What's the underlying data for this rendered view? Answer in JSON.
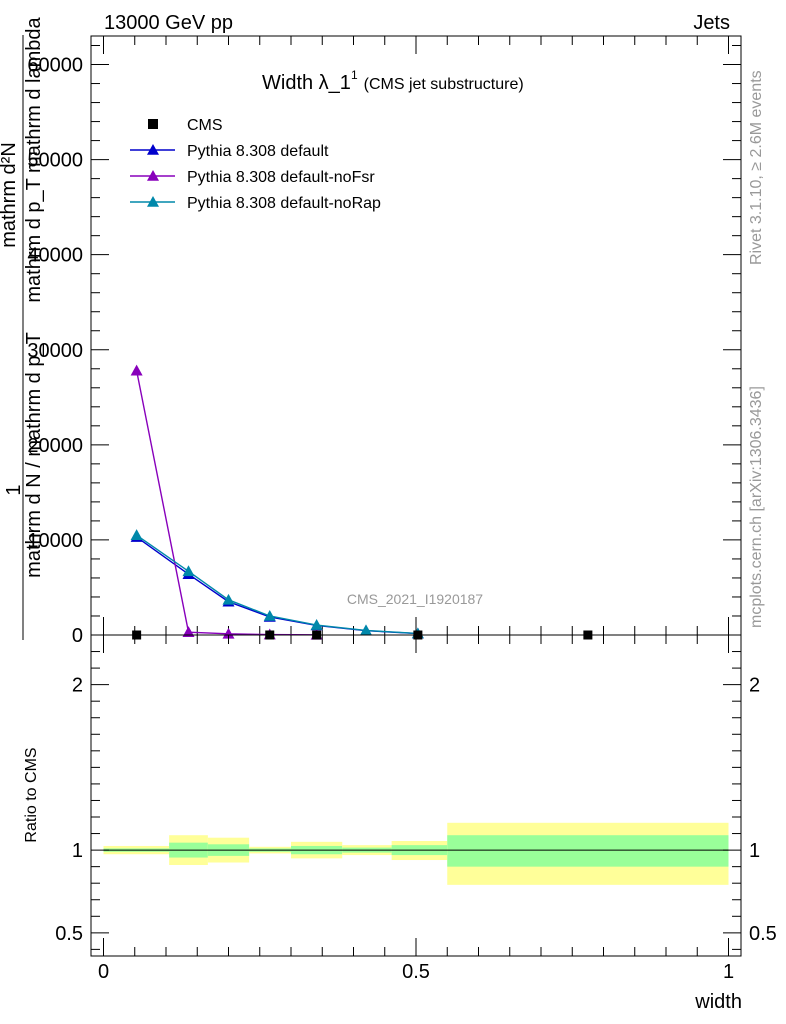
{
  "header": {
    "left": "13000 GeV pp",
    "right": "Jets"
  },
  "title": {
    "main": "Width λ_1",
    "sup": "1",
    "sub": "(CMS jet substructure)"
  },
  "side_labels": {
    "rivet": "Rivet 3.1.10, ≥ 2.6M events",
    "mcplots": "mcplots.cern.ch [arXiv:1306.3436]"
  },
  "watermark": "CMS_2021_I1920187",
  "ylabel_main": {
    "numerator_1": "1",
    "denominator_1": "mathrm d N / mathrm d p_T",
    "numerator_2": "mathrm d²N",
    "denominator_2": "mathrm d p_T mathrm d lambda"
  },
  "colors": {
    "cms": "#000000",
    "default": "#0000cc",
    "noFsr": "#8800bb",
    "noRap": "#0088aa",
    "band_inner": "#99ff99",
    "band_outer": "#ffff99"
  },
  "chart_data": [
    {
      "type": "line",
      "panel": "main",
      "xlim": [
        -0.02,
        1.02
      ],
      "ylim": [
        0,
        63000
      ],
      "yticks": [
        0,
        10000,
        20000,
        30000,
        40000,
        50000,
        60000
      ],
      "ytick_labels": [
        "0",
        "10000",
        "20000",
        "30000",
        "40000",
        "50000",
        "60000"
      ],
      "legend_position": "top-left",
      "legend": [
        {
          "label": "CMS",
          "marker": "square",
          "color_key": "cms"
        },
        {
          "label": "Pythia 8.308 default",
          "marker": "triangle",
          "color_key": "default"
        },
        {
          "label": "Pythia 8.308 default-noFsr",
          "marker": "triangle",
          "color_key": "noFsr"
        },
        {
          "label": "Pythia 8.308 default-noRap",
          "marker": "triangle",
          "color_key": "noRap"
        }
      ],
      "cms_points": {
        "x": [
          0.053,
          0.266,
          0.341,
          0.503,
          0.775
        ],
        "y": [
          0,
          0,
          0,
          0,
          0
        ]
      },
      "series": [
        {
          "name": "Pythia 8.308 default",
          "color_key": "default",
          "x": [
            0.053,
            0.136,
            0.2,
            0.266,
            0.341,
            0.42,
            0.503
          ],
          "y": [
            10300,
            6400,
            3500,
            1900,
            1000,
            450,
            150
          ]
        },
        {
          "name": "Pythia 8.308 default-noFsr",
          "color_key": "noFsr",
          "x": [
            0.053,
            0.136,
            0.2,
            0.266,
            0.341
          ],
          "y": [
            27800,
            300,
            120,
            50,
            20
          ]
        },
        {
          "name": "Pythia 8.308 default-noRap",
          "color_key": "noRap",
          "x": [
            0.053,
            0.136,
            0.2,
            0.266,
            0.341,
            0.42,
            0.503
          ],
          "y": [
            10500,
            6700,
            3700,
            2000,
            1050,
            480,
            160
          ]
        }
      ]
    },
    {
      "type": "area",
      "panel": "ratio",
      "ylabel": "Ratio to CMS",
      "xlabel": "width",
      "xlim": [
        -0.02,
        1.02
      ],
      "ylim": [
        0.36,
        2.3
      ],
      "yticks": [
        0.5,
        1,
        2
      ],
      "ytick_labels": [
        "0.5",
        "1",
        "2"
      ],
      "xticks": [
        0,
        0.5,
        1
      ],
      "xtick_labels": [
        "0",
        "0.5",
        "1"
      ],
      "bands": [
        {
          "x0": 0.0,
          "x1": 0.105,
          "inner": [
            0.99,
            1.01
          ],
          "outer": [
            0.975,
            1.025
          ]
        },
        {
          "x0": 0.105,
          "x1": 0.167,
          "inner": [
            0.955,
            1.045
          ],
          "outer": [
            0.91,
            1.09
          ]
        },
        {
          "x0": 0.167,
          "x1": 0.233,
          "inner": [
            0.965,
            1.035
          ],
          "outer": [
            0.925,
            1.075
          ]
        },
        {
          "x0": 0.233,
          "x1": 0.3,
          "inner": [
            0.99,
            1.01
          ],
          "outer": [
            0.98,
            1.02
          ]
        },
        {
          "x0": 0.3,
          "x1": 0.382,
          "inner": [
            0.975,
            1.025
          ],
          "outer": [
            0.95,
            1.05
          ]
        },
        {
          "x0": 0.382,
          "x1": 0.461,
          "inner": [
            0.985,
            1.015
          ],
          "outer": [
            0.97,
            1.03
          ]
        },
        {
          "x0": 0.461,
          "x1": 0.55,
          "inner": [
            0.97,
            1.03
          ],
          "outer": [
            0.94,
            1.055
          ]
        },
        {
          "x0": 0.55,
          "x1": 1.0,
          "inner": [
            0.9,
            1.09
          ],
          "outer": [
            0.79,
            1.165
          ]
        }
      ]
    }
  ]
}
